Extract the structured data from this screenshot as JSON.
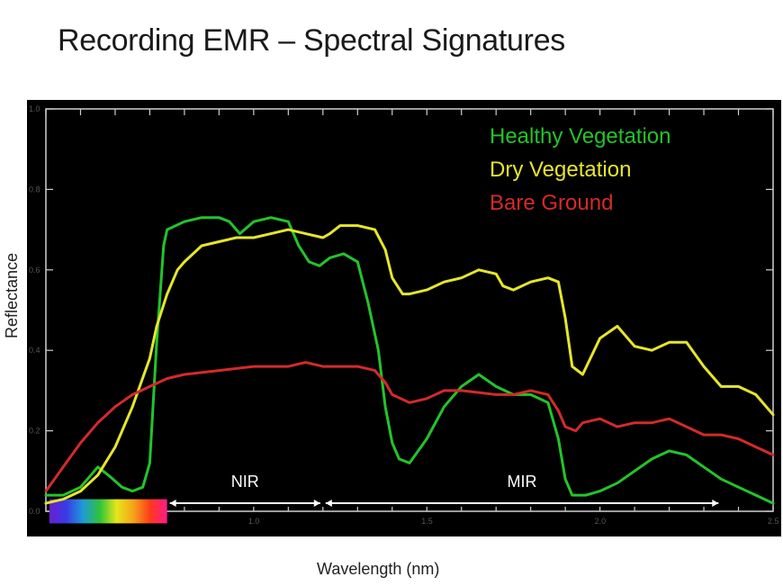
{
  "slide": {
    "title": "Recording EMR – Spectral Signatures"
  },
  "chart_data": {
    "type": "line",
    "xlabel": "Wavelength (nm)",
    "ylabel": "Reflectance",
    "xlim": [
      0.4,
      2.5
    ],
    "ylim": [
      0.0,
      1.0
    ],
    "x_ticks": [
      1.0,
      1.5,
      2.0,
      2.5
    ],
    "x_tick_labels": [
      "1.0",
      "1.5",
      "2.0",
      "2.5"
    ],
    "y_ticks": [
      0.0,
      0.2,
      0.4,
      0.6,
      0.8,
      1.0
    ],
    "y_tick_labels": [
      "0.0",
      "0.2",
      "0.4",
      "0.6",
      "0.8",
      "1.0"
    ],
    "background": "#000000",
    "legend_placement": "top-right",
    "spectrum_bar": {
      "x_range": [
        0.41,
        0.75
      ],
      "colors": [
        "#6a1fd0",
        "#3a3ae6",
        "#1f9ad6",
        "#2ec43a",
        "#e6e61a",
        "#f5a31a",
        "#ff3a1a",
        "#ff1a8c"
      ]
    },
    "regions": [
      {
        "label": "NIR",
        "x_range": [
          0.75,
          1.2
        ]
      },
      {
        "label": "MIR",
        "x_range": [
          1.2,
          2.35
        ]
      }
    ],
    "series": [
      {
        "name": "Healthy Vegetation",
        "color": "#22c42a",
        "x": [
          0.4,
          0.45,
          0.5,
          0.53,
          0.55,
          0.58,
          0.62,
          0.65,
          0.68,
          0.7,
          0.72,
          0.74,
          0.75,
          0.8,
          0.85,
          0.9,
          0.93,
          0.96,
          1.0,
          1.05,
          1.1,
          1.13,
          1.16,
          1.19,
          1.22,
          1.26,
          1.3,
          1.33,
          1.36,
          1.38,
          1.4,
          1.42,
          1.45,
          1.5,
          1.55,
          1.6,
          1.65,
          1.7,
          1.75,
          1.8,
          1.85,
          1.88,
          1.9,
          1.92,
          1.96,
          2.0,
          2.05,
          2.1,
          2.15,
          2.2,
          2.25,
          2.3,
          2.35,
          2.4,
          2.45,
          2.5
        ],
        "y": [
          0.04,
          0.04,
          0.06,
          0.09,
          0.11,
          0.09,
          0.06,
          0.05,
          0.06,
          0.12,
          0.42,
          0.66,
          0.7,
          0.72,
          0.73,
          0.73,
          0.72,
          0.69,
          0.72,
          0.73,
          0.72,
          0.66,
          0.62,
          0.61,
          0.63,
          0.64,
          0.62,
          0.52,
          0.4,
          0.26,
          0.17,
          0.13,
          0.12,
          0.18,
          0.26,
          0.31,
          0.34,
          0.31,
          0.29,
          0.29,
          0.27,
          0.18,
          0.08,
          0.04,
          0.04,
          0.05,
          0.07,
          0.1,
          0.13,
          0.15,
          0.14,
          0.11,
          0.08,
          0.06,
          0.04,
          0.02
        ]
      },
      {
        "name": "Dry Vegetation",
        "color": "#e6e62a",
        "x": [
          0.4,
          0.45,
          0.5,
          0.55,
          0.6,
          0.65,
          0.7,
          0.72,
          0.75,
          0.78,
          0.8,
          0.85,
          0.9,
          0.95,
          1.0,
          1.05,
          1.1,
          1.15,
          1.2,
          1.22,
          1.25,
          1.3,
          1.35,
          1.38,
          1.4,
          1.43,
          1.45,
          1.5,
          1.55,
          1.6,
          1.65,
          1.7,
          1.72,
          1.75,
          1.8,
          1.85,
          1.88,
          1.9,
          1.92,
          1.95,
          2.0,
          2.05,
          2.1,
          2.15,
          2.2,
          2.25,
          2.3,
          2.35,
          2.4,
          2.45,
          2.5
        ],
        "y": [
          0.02,
          0.03,
          0.05,
          0.09,
          0.16,
          0.26,
          0.38,
          0.46,
          0.54,
          0.6,
          0.62,
          0.66,
          0.67,
          0.68,
          0.68,
          0.69,
          0.7,
          0.69,
          0.68,
          0.69,
          0.71,
          0.71,
          0.7,
          0.65,
          0.58,
          0.54,
          0.54,
          0.55,
          0.57,
          0.58,
          0.6,
          0.59,
          0.56,
          0.55,
          0.57,
          0.58,
          0.57,
          0.48,
          0.36,
          0.34,
          0.43,
          0.46,
          0.41,
          0.4,
          0.42,
          0.42,
          0.36,
          0.31,
          0.31,
          0.29,
          0.24
        ]
      },
      {
        "name": "Bare Ground",
        "color": "#d42a2a",
        "x": [
          0.4,
          0.45,
          0.5,
          0.55,
          0.6,
          0.65,
          0.7,
          0.75,
          0.8,
          0.9,
          1.0,
          1.1,
          1.15,
          1.2,
          1.25,
          1.3,
          1.35,
          1.38,
          1.4,
          1.45,
          1.5,
          1.55,
          1.6,
          1.7,
          1.75,
          1.8,
          1.85,
          1.88,
          1.9,
          1.93,
          1.95,
          2.0,
          2.05,
          2.1,
          2.15,
          2.2,
          2.25,
          2.3,
          2.35,
          2.4,
          2.45,
          2.5
        ],
        "y": [
          0.05,
          0.11,
          0.17,
          0.22,
          0.26,
          0.29,
          0.31,
          0.33,
          0.34,
          0.35,
          0.36,
          0.36,
          0.37,
          0.36,
          0.36,
          0.36,
          0.35,
          0.32,
          0.29,
          0.27,
          0.28,
          0.3,
          0.3,
          0.29,
          0.29,
          0.3,
          0.29,
          0.25,
          0.21,
          0.2,
          0.22,
          0.23,
          0.21,
          0.22,
          0.22,
          0.23,
          0.21,
          0.19,
          0.19,
          0.18,
          0.16,
          0.14
        ]
      }
    ]
  }
}
